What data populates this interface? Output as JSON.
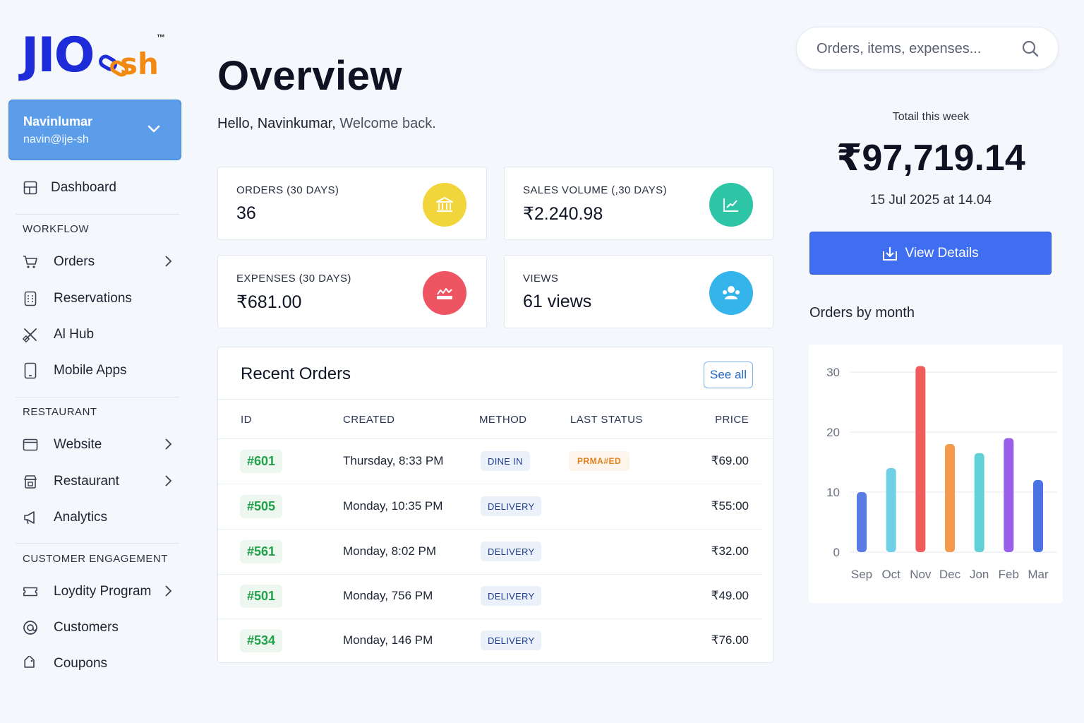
{
  "logo": {
    "text_main": "JIO",
    "text_suffix": "sh",
    "tm": "™"
  },
  "account": {
    "name": "Navinlumar",
    "email": "navin@ije-sh"
  },
  "nav": {
    "dashboard": "Dashboard",
    "workflow_section": "WORKFLOW",
    "workflow": [
      {
        "label": "Orders",
        "icon": "cart-icon",
        "arrow": true
      },
      {
        "label": "Reservations",
        "icon": "calendar-icon",
        "arrow": false
      },
      {
        "label": "Al Hub",
        "icon": "tools-icon",
        "arrow": false
      },
      {
        "label": "Mobile Apps",
        "icon": "mobile-icon",
        "arrow": false
      }
    ],
    "restaurant_section": "RESTAURANT",
    "restaurant": [
      {
        "label": "Website",
        "icon": "browser-icon",
        "arrow": true
      },
      {
        "label": "Restaurant",
        "icon": "store-icon",
        "arrow": true
      },
      {
        "label": "Analytics",
        "icon": "megaphone-icon",
        "arrow": false
      }
    ],
    "engagement_section": "CUSTOMER ENGAGEMENT",
    "engagement": [
      {
        "label": "Loydity Program",
        "icon": "ticket-icon",
        "arrow": true
      },
      {
        "label": "Customers",
        "icon": "at-icon",
        "arrow": false
      },
      {
        "label": "Coupons",
        "icon": "tag-icon",
        "arrow": false
      }
    ]
  },
  "page": {
    "title": "Overview",
    "greeting": "Hello, Navinkumar,",
    "greeting_sub": "Welcome back."
  },
  "stats": [
    {
      "label": "ORDERS (30 DAYS)",
      "value": "36",
      "color": "#f2d53a",
      "icon": "bank-icon"
    },
    {
      "label": "SALES VOLUME (,30 DAYS)",
      "value": "₹2.240.98",
      "color": "#2ec4a6",
      "icon": "chart-up-icon"
    },
    {
      "label": "EXPENSES (30 DAYS)",
      "value": "₹681.00",
      "color": "#ee5462",
      "icon": "expense-icon"
    },
    {
      "label": "VIEWS",
      "value": "61 views",
      "color": "#34b4ea",
      "icon": "users-icon"
    }
  ],
  "recent_orders": {
    "title": "Recent Orders",
    "see_all": "See all",
    "columns": [
      "ID",
      "CREATED",
      "METHOD",
      "LAST STATUS",
      "PRICE"
    ],
    "rows": [
      {
        "id": "#601",
        "created": "Thursday, 8:33 PM",
        "method": "DINE IN",
        "status": "PRMA#ED",
        "price": "₹69.00"
      },
      {
        "id": "#505",
        "created": "Monday, 10:35 PM",
        "method": "DELIVERY",
        "status": "",
        "price": "₹55:00"
      },
      {
        "id": "#561",
        "created": "Monday, 8:02 PM",
        "method": "DELIVERY",
        "status": "",
        "price": "₹32.00"
      },
      {
        "id": "#501",
        "created": "Monday, 756 PM",
        "method": "DELIVERY",
        "status": "",
        "price": "₹49.00"
      },
      {
        "id": "#534",
        "created": "Monday, 146 PM",
        "method": "DELIVERY",
        "status": "",
        "price": "₹76.00"
      }
    ]
  },
  "search": {
    "placeholder": "Orders, items, expenses..."
  },
  "summary": {
    "label": "Totail this week",
    "value": "₹97,719.14",
    "date": "15 Jul 2025 at 14.04",
    "button": "View Details"
  },
  "chart_heading": "Orders by month",
  "chart_data": {
    "type": "bar",
    "categories": [
      "Sep",
      "Oct",
      "Nov",
      "Dec",
      "Jon",
      "Feb",
      "Mar"
    ],
    "values": [
      10,
      14,
      31,
      18,
      16.5,
      19,
      12
    ],
    "colors": [
      "#5a7be6",
      "#6fd0e6",
      "#f05c5c",
      "#f59a4c",
      "#62d1d6",
      "#9a5ee8",
      "#4a72e2"
    ],
    "ylim": [
      0,
      30
    ],
    "yticks": [
      0,
      10,
      20,
      30
    ],
    "grid": true
  }
}
